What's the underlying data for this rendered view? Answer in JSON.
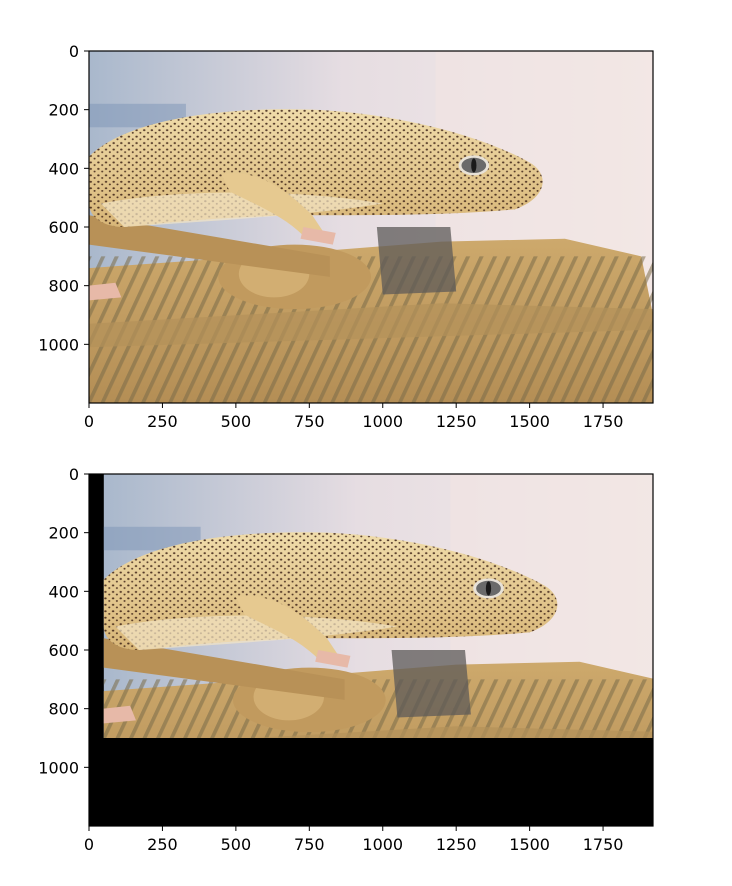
{
  "chart_data": [
    {
      "type": "image",
      "content": "leopard gecko resting on a camouflage-painted toy tank (photograph)",
      "xlim": [
        0,
        1920
      ],
      "ylim": [
        1200,
        0
      ],
      "xticks": [
        "0",
        "250",
        "500",
        "750",
        "1000",
        "1250",
        "1500",
        "1750"
      ],
      "yticks": [
        "0",
        "200",
        "400",
        "600",
        "800",
        "1000"
      ],
      "image_extent": {
        "x": [
          0,
          1920
        ],
        "y": [
          0,
          1200
        ]
      },
      "title": "",
      "xlabel": "",
      "ylabel": ""
    },
    {
      "type": "image",
      "content": "same photograph translated right and up, remaining area filled black",
      "xlim": [
        0,
        1920
      ],
      "ylim": [
        1200,
        0
      ],
      "xticks": [
        "0",
        "250",
        "500",
        "750",
        "1000",
        "1250",
        "1500",
        "1750"
      ],
      "yticks": [
        "0",
        "200",
        "400",
        "600",
        "800",
        "1000"
      ],
      "image_extent": {
        "x": [
          50,
          1920
        ],
        "y": [
          0,
          900
        ]
      },
      "fill_color": "#000000",
      "title": "",
      "xlabel": "",
      "ylabel": ""
    }
  ],
  "colors": {
    "gecko_body": "#e9d29a",
    "gecko_spot": "#3a1f14",
    "tank_tan": "#c9a56a",
    "tank_stripe": "#7d6a45",
    "background_light": "#f2e6e4",
    "background_blue": "#9fb3cc"
  }
}
